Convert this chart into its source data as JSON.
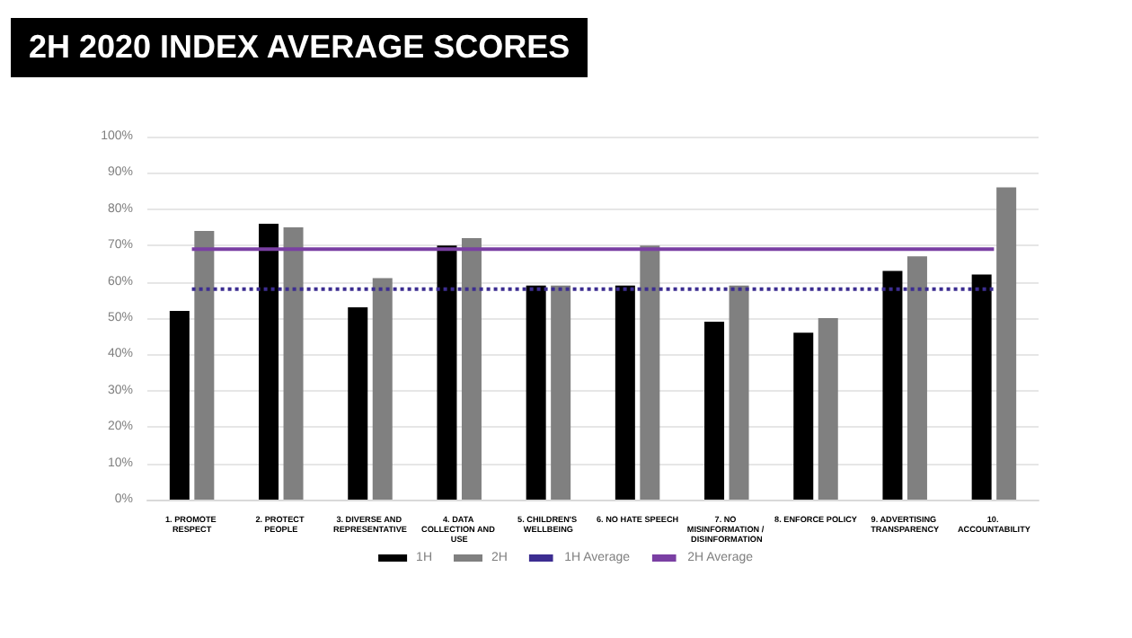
{
  "chart_data": {
    "type": "bar",
    "title": "2H 2020 INDEX AVERAGE SCORES",
    "categories": [
      "1. PROMOTE RESPECT",
      "2. PROTECT PEOPLE",
      "3. DIVERSE AND REPRESENTATIVE",
      "4. DATA COLLECTION AND USE",
      "5. CHILDREN'S WELLBEING",
      "6. NO HATE SPEECH",
      "7. NO MISINFORMATION / DISINFORMATION",
      "8. ENFORCE POLICY",
      "9. ADVERTISING TRANSPARENCY",
      "10. ACCOUNTABILITY"
    ],
    "series": [
      {
        "name": "1H",
        "color": "#000000",
        "values": [
          52,
          76,
          53,
          70,
          59,
          59,
          49,
          46,
          63,
          62
        ]
      },
      {
        "name": "2H",
        "color": "#808080",
        "values": [
          74,
          75,
          61,
          72,
          59,
          70,
          59,
          50,
          67,
          86
        ]
      },
      {
        "name": "1H Average",
        "type": "line",
        "line_style": "dotted",
        "color": "#3c2d91",
        "values": [
          58,
          58,
          58,
          58,
          58,
          58,
          58,
          58,
          58,
          58
        ]
      },
      {
        "name": "2H Average",
        "type": "line",
        "line_style": "solid",
        "color": "#7a3fa3",
        "values": [
          69,
          69,
          69,
          69,
          69,
          69,
          69,
          69,
          69,
          69
        ]
      }
    ],
    "ylim": [
      0,
      100
    ],
    "yticks": [
      {
        "value": 0,
        "label": "0%"
      },
      {
        "value": 10,
        "label": "10%"
      },
      {
        "value": 20,
        "label": "20%"
      },
      {
        "value": 30,
        "label": "30%"
      },
      {
        "value": 40,
        "label": "40%"
      },
      {
        "value": 50,
        "label": "50%"
      },
      {
        "value": 60,
        "label": "60%"
      },
      {
        "value": 70,
        "label": "70%"
      },
      {
        "value": 80,
        "label": "80%"
      },
      {
        "value": 90,
        "label": "90%"
      },
      {
        "value": 100,
        "label": "100%"
      }
    ],
    "grid": "y",
    "legend": "bottom",
    "marker": "none"
  }
}
